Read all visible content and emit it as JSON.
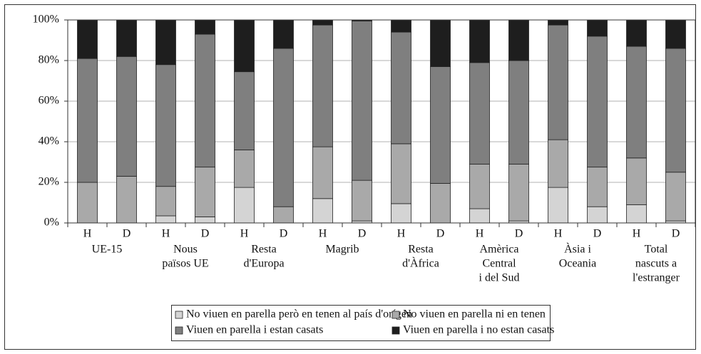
{
  "chart_data": {
    "type": "stacked_bar",
    "categories": [
      "H",
      "D",
      "H",
      "D",
      "H",
      "D",
      "H",
      "D",
      "H",
      "D",
      "H",
      "D",
      "H",
      "D",
      "H",
      "D"
    ],
    "groups": [
      {
        "label": [
          "UE-15"
        ]
      },
      {
        "label": [
          "Nous",
          "països UE"
        ]
      },
      {
        "label": [
          "Resta",
          "d'Europa"
        ]
      },
      {
        "label": [
          "Magrib"
        ]
      },
      {
        "label": [
          "Resta",
          "d'Àfrica"
        ]
      },
      {
        "label": [
          "Amèrica",
          "Central",
          "i del Sud"
        ]
      },
      {
        "label": [
          "Àsia i",
          "Oceania"
        ]
      },
      {
        "label": [
          "Total",
          "nascuts a",
          "l'estranger"
        ]
      }
    ],
    "series": [
      {
        "name": "No viuen en parella però en tenen al país d'orígen",
        "color": "#d4d4d4",
        "values": [
          0,
          0,
          3.5,
          3,
          17.5,
          0,
          12,
          1,
          9.5,
          0,
          7,
          1,
          17.5,
          8,
          9,
          1
        ]
      },
      {
        "name": "No viuen en parella ni en tenen",
        "color": "#a9a9a9",
        "values": [
          20,
          23,
          14.5,
          24.5,
          18.5,
          8,
          25.5,
          20,
          29.5,
          19.5,
          22,
          28,
          23.5,
          19.5,
          23,
          24
        ]
      },
      {
        "name": "Viuen en parella i estan casats",
        "color": "#7f7f7f",
        "values": [
          61,
          59,
          60,
          65.5,
          38.5,
          78,
          60,
          78.5,
          55,
          57.5,
          50,
          51,
          56.5,
          64.5,
          55,
          61
        ]
      },
      {
        "name": "Viuen en parella i no estan casats",
        "color": "#1e1e1e",
        "values": [
          19,
          18,
          22,
          7,
          25.5,
          14,
          2.5,
          0.5,
          6,
          23,
          21,
          20,
          2.5,
          8,
          13,
          14
        ]
      }
    ],
    "ylim": [
      0,
      100
    ],
    "yticks": [
      {
        "value": 0,
        "label": "0%"
      },
      {
        "value": 20,
        "label": "20%"
      },
      {
        "value": 40,
        "label": "40%"
      },
      {
        "value": 60,
        "label": "60%"
      },
      {
        "value": 80,
        "label": "80%"
      },
      {
        "value": 100,
        "label": "100%"
      }
    ],
    "grid": true
  }
}
